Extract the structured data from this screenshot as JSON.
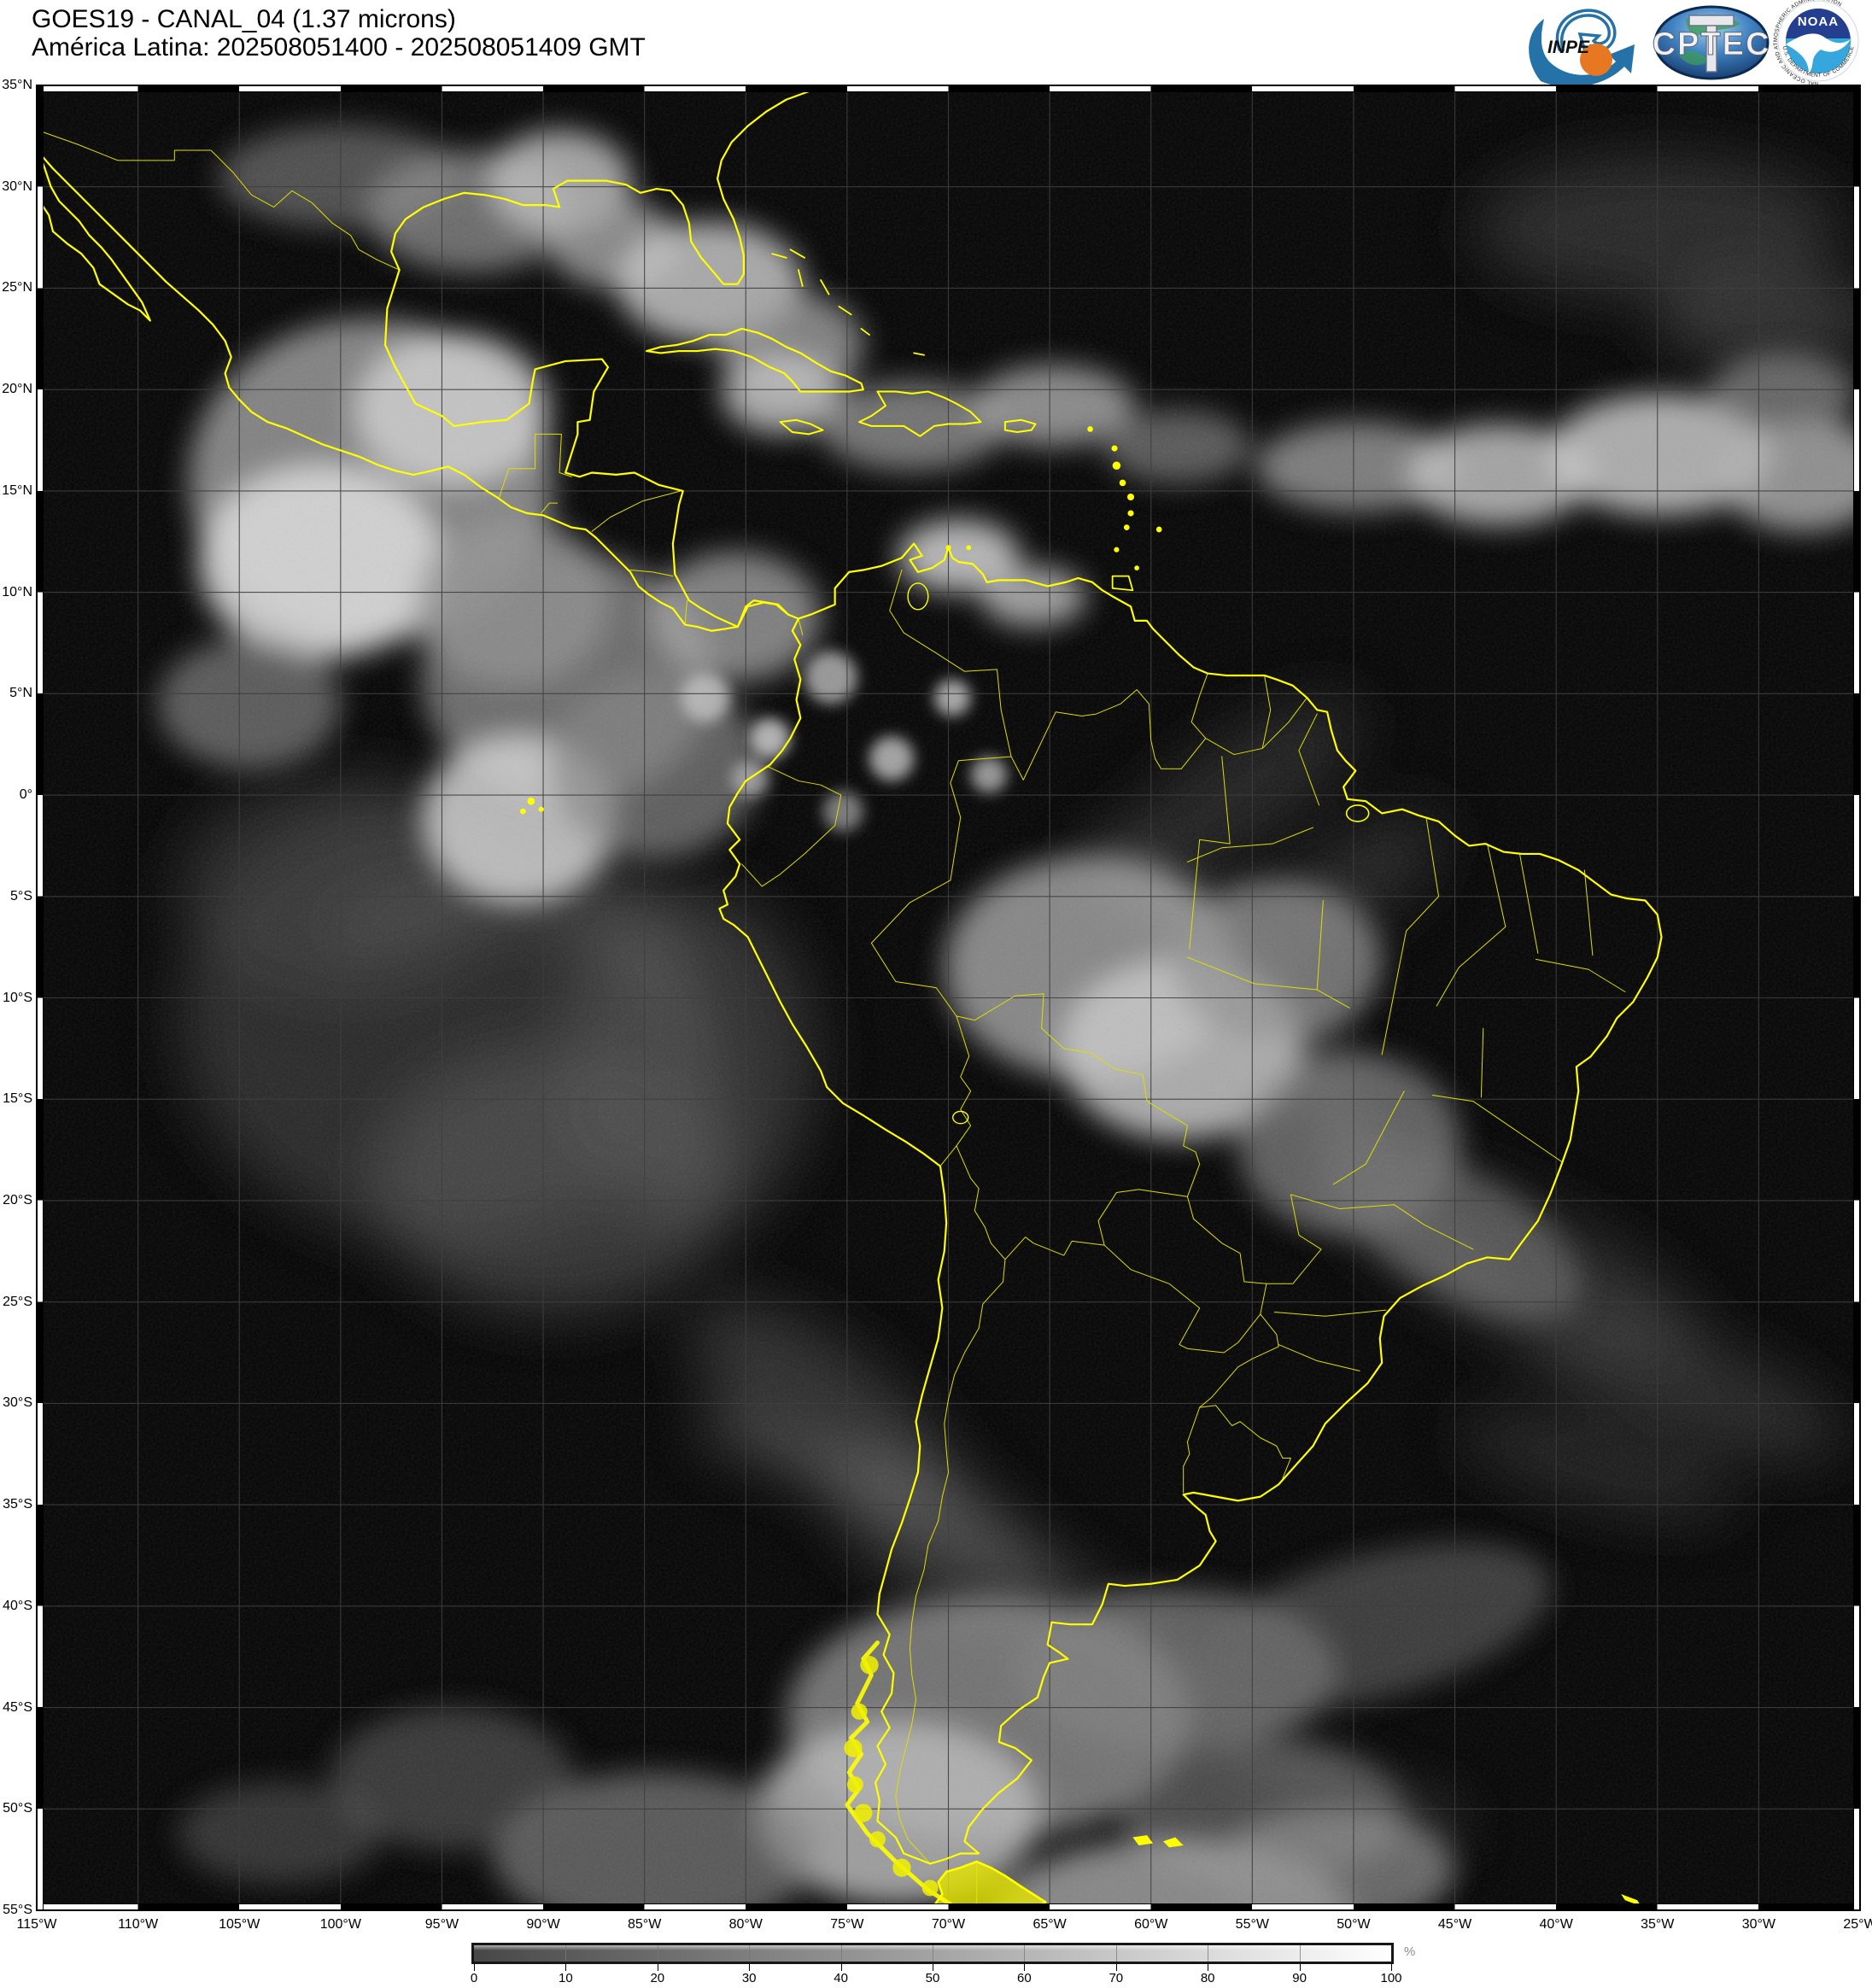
{
  "header": {
    "title_line1": "GOES19 - CANAL_04 (1.37 microns)",
    "title_line2": "América Latina: 202508051400 - 202508051409 GMT"
  },
  "logos": {
    "inpe_label": "INPE",
    "cptec_label": "CPTEC",
    "noaa_label": "NOAA",
    "noaa_ring_top": "NATIONAL OCEANIC AND ATMOSPHERIC ADMINISTRATION",
    "noaa_ring_bottom": "U.S. DEPARTMENT OF COMMERCE"
  },
  "map": {
    "lat_labels": [
      "35°N",
      "30°N",
      "25°N",
      "20°N",
      "15°N",
      "10°N",
      "5°N",
      "0°",
      "5°S",
      "10°S",
      "15°S",
      "20°S",
      "25°S",
      "30°S",
      "35°S",
      "40°S",
      "45°S",
      "50°S",
      "55°S"
    ],
    "lon_labels": [
      "115°W",
      "110°W",
      "105°W",
      "100°W",
      "95°W",
      "90°W",
      "85°W",
      "80°W",
      "75°W",
      "70°W",
      "65°W",
      "60°W",
      "55°W",
      "50°W",
      "45°W",
      "40°W",
      "35°W",
      "30°W",
      "25°W"
    ]
  },
  "colorbar": {
    "tick_labels": [
      "0",
      "10",
      "20",
      "30",
      "40",
      "50",
      "60",
      "70",
      "80",
      "90",
      "100"
    ],
    "unit": "%",
    "start_color": "#474747",
    "end_color": "#ffffff"
  },
  "colors": {
    "coastline": "#ffff00",
    "inner_border": "#dede00",
    "graticule": "#3f3f3f",
    "space_background": "#060606",
    "inpe_blue": "#2472a8",
    "inpe_orange": "#e87722",
    "cptec_blue": "#16406e",
    "noaa_navy": "#243f8f",
    "noaa_sky": "#36a7dd"
  }
}
